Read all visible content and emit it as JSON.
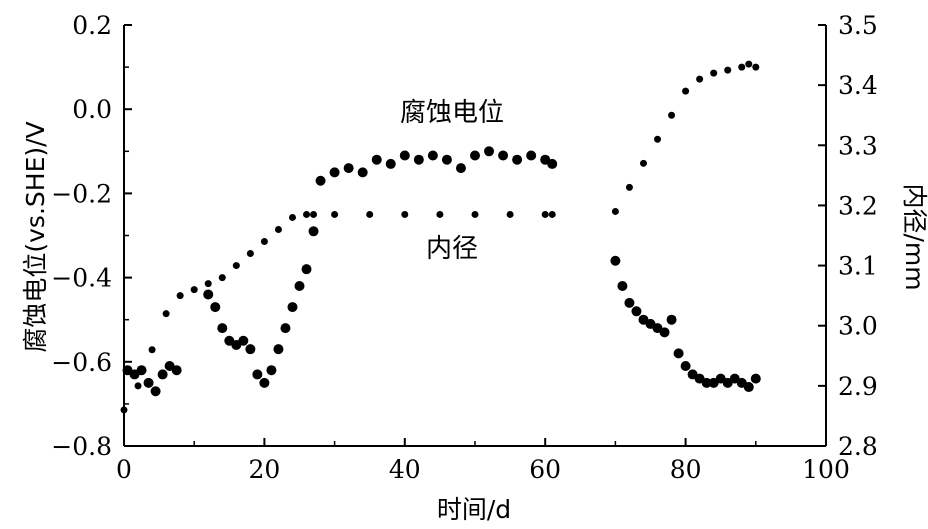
{
  "chart_data": {
    "type": "scatter",
    "xlabel": "时间/d",
    "ylabel_left": "腐蚀电位(vs.SHE)/V",
    "ylabel_right": "内径/mm",
    "xlim": [
      0,
      100
    ],
    "ylim_left": [
      -0.8,
      0.2
    ],
    "ylim_right": [
      2.8,
      3.5
    ],
    "x_ticks": [
      "0",
      "20",
      "40",
      "60",
      "80",
      "100"
    ],
    "y_left_ticks": [
      "-0.8",
      "-0.6",
      "-0.4",
      "-0.2",
      "0.0",
      "0.2"
    ],
    "y_right_ticks": [
      "2.8",
      "2.9",
      "3.0",
      "3.1",
      "3.2",
      "3.3",
      "3.4",
      "3.5"
    ],
    "grid": false,
    "annotations": [
      {
        "text": "腐蚀电位",
        "series": "corrosion_potential"
      },
      {
        "text": "内径",
        "series": "inner_diameter"
      }
    ],
    "series": [
      {
        "id": "corrosion_potential",
        "axis": "left",
        "x": [
          0.5,
          1.5,
          2.5,
          3.5,
          4.5,
          5.5,
          6.5,
          7.5,
          12,
          13,
          14,
          15,
          16,
          17,
          18,
          19,
          20,
          21,
          22,
          23,
          24,
          25,
          26,
          27,
          28,
          30,
          32,
          34,
          36,
          38,
          40,
          42,
          44,
          46,
          48,
          50,
          52,
          54,
          56,
          58,
          60,
          61,
          70,
          71,
          72,
          73,
          74,
          75,
          76,
          77,
          78,
          79,
          80,
          81,
          82,
          83,
          84,
          85,
          86,
          87,
          88,
          89,
          90
        ],
        "y": [
          -0.62,
          -0.63,
          -0.62,
          -0.65,
          -0.67,
          -0.63,
          -0.61,
          -0.62,
          -0.44,
          -0.47,
          -0.52,
          -0.55,
          -0.56,
          -0.55,
          -0.57,
          -0.63,
          -0.65,
          -0.62,
          -0.57,
          -0.52,
          -0.47,
          -0.42,
          -0.38,
          -0.29,
          -0.17,
          -0.15,
          -0.14,
          -0.15,
          -0.12,
          -0.13,
          -0.11,
          -0.12,
          -0.11,
          -0.12,
          -0.14,
          -0.11,
          -0.1,
          -0.11,
          -0.12,
          -0.11,
          -0.12,
          -0.13,
          -0.36,
          -0.42,
          -0.46,
          -0.48,
          -0.5,
          -0.51,
          -0.52,
          -0.53,
          -0.5,
          -0.58,
          -0.61,
          -0.63,
          -0.64,
          -0.65,
          -0.65,
          -0.64,
          -0.65,
          -0.64,
          -0.65,
          -0.66,
          -0.64
        ]
      },
      {
        "id": "inner_diameter",
        "axis": "right",
        "x": [
          0,
          2,
          4,
          6,
          8,
          10,
          12,
          14,
          16,
          18,
          20,
          22,
          24,
          26,
          27,
          30,
          35,
          40,
          45,
          50,
          55,
          60,
          61,
          70,
          72,
          74,
          76,
          78,
          80,
          82,
          84,
          86,
          88,
          89,
          90
        ],
        "y": [
          2.86,
          2.9,
          2.96,
          3.02,
          3.05,
          3.06,
          3.07,
          3.08,
          3.1,
          3.12,
          3.14,
          3.16,
          3.18,
          3.185,
          3.185,
          3.185,
          3.185,
          3.185,
          3.185,
          3.185,
          3.185,
          3.185,
          3.185,
          3.19,
          3.23,
          3.27,
          3.31,
          3.35,
          3.39,
          3.41,
          3.42,
          3.425,
          3.43,
          3.435,
          3.43
        ]
      }
    ]
  }
}
